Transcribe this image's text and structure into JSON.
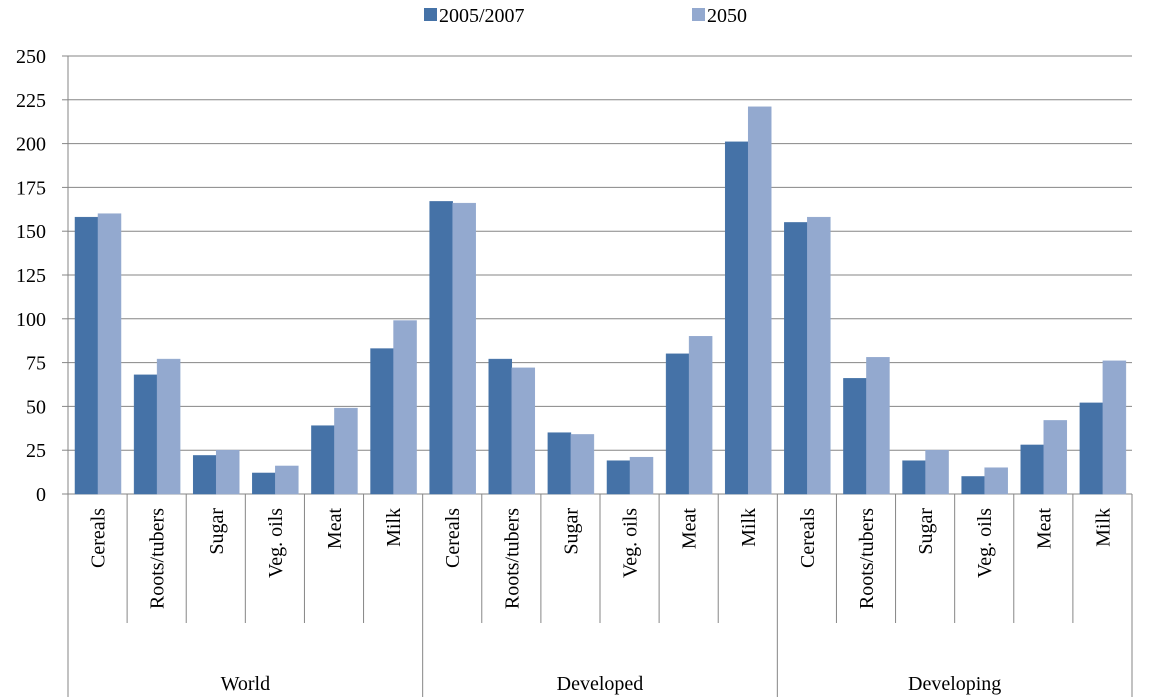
{
  "chart_data": {
    "type": "bar",
    "title": "",
    "xlabel": "",
    "ylabel": "",
    "ylim": [
      0,
      250
    ],
    "yticks": [
      0,
      25,
      50,
      75,
      100,
      125,
      150,
      175,
      200,
      225,
      250
    ],
    "grid": true,
    "legend_position": "top-center",
    "groups": [
      "World",
      "Developed",
      "Developing"
    ],
    "categories": [
      "Cereals",
      "Roots/tubers",
      "Sugar",
      "Veg. oils",
      "Meat",
      "Milk"
    ],
    "series": [
      {
        "name": "2005/2007",
        "color": "#4572A7",
        "values": [
          [
            158,
            68,
            22,
            12,
            39,
            83
          ],
          [
            167,
            77,
            35,
            19,
            80,
            201
          ],
          [
            155,
            66,
            19,
            10,
            28,
            52
          ]
        ]
      },
      {
        "name": "2050",
        "color": "#93A9CF",
        "values": [
          [
            160,
            77,
            25,
            16,
            49,
            99
          ],
          [
            166,
            72,
            34,
            21,
            90,
            221
          ],
          [
            158,
            78,
            25,
            15,
            42,
            76
          ]
        ]
      }
    ]
  }
}
